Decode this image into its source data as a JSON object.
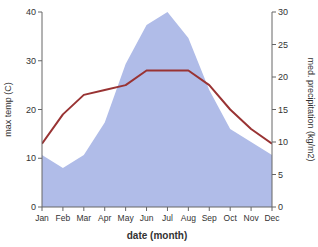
{
  "chart_data": {
    "type": "line",
    "categories": [
      "Jan",
      "Feb",
      "Mar",
      "Apr",
      "May",
      "Jun",
      "Jul",
      "Aug",
      "Sep",
      "Oct",
      "Nov",
      "Dec"
    ],
    "series": [
      {
        "type": "area",
        "axis": "y2",
        "color": "#b0bce8",
        "values": [
          8,
          6,
          8,
          13,
          22,
          28,
          30,
          26,
          18,
          12,
          10,
          8
        ]
      },
      {
        "type": "line",
        "color": "#993333",
        "values": [
          13,
          19,
          23,
          24,
          25,
          28,
          28,
          28,
          25,
          20,
          16,
          13
        ]
      }
    ],
    "xlabel": "date (month)",
    "ylabel": "max temp (C)",
    "y2label": "med. precipitation (kg/m2)",
    "ylim": [
      0,
      40
    ],
    "yticks": [
      0,
      10,
      20,
      30,
      40
    ],
    "y2lim": [
      0,
      30
    ],
    "y2ticks": [
      0,
      5,
      10,
      15,
      20,
      25,
      30
    ],
    "grid": false
  }
}
